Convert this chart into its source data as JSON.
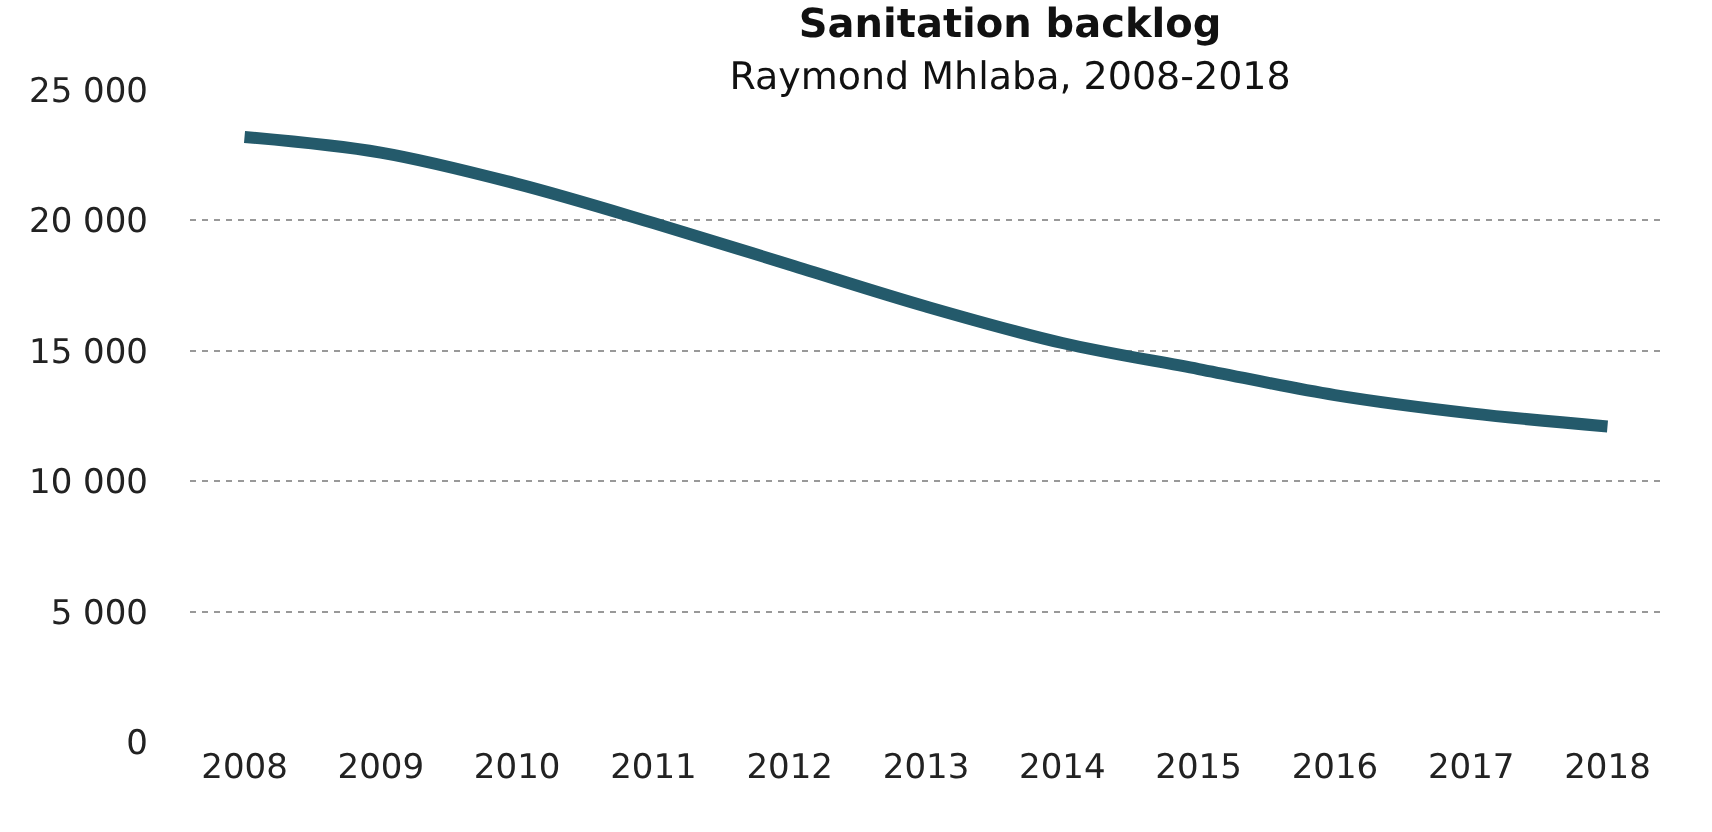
{
  "chart_data": {
    "type": "line",
    "title": "Sanitation backlog",
    "subtitle": "Raymond Mhlaba, 2008-2018",
    "categories": [
      "2008",
      "2009",
      "2010",
      "2011",
      "2012",
      "2013",
      "2014",
      "2015",
      "2016",
      "2017",
      "2018"
    ],
    "series": [
      {
        "color": "#245a6b",
        "values": [
          23200,
          22600,
          21400,
          19900,
          18300,
          16700,
          15300,
          14300,
          13300,
          12600,
          12100
        ]
      }
    ],
    "ylim": [
      0,
      25000
    ],
    "yticks": [
      {
        "value": 0,
        "label": "0"
      },
      {
        "value": 5000,
        "label": "5 000"
      },
      {
        "value": 10000,
        "label": "10 000"
      },
      {
        "value": 15000,
        "label": "15 000"
      },
      {
        "value": 20000,
        "label": "20 000"
      },
      {
        "value": 25000,
        "label": "25 000"
      }
    ],
    "grid": "y",
    "marker": "none",
    "line_style": "solid",
    "legend": false
  }
}
